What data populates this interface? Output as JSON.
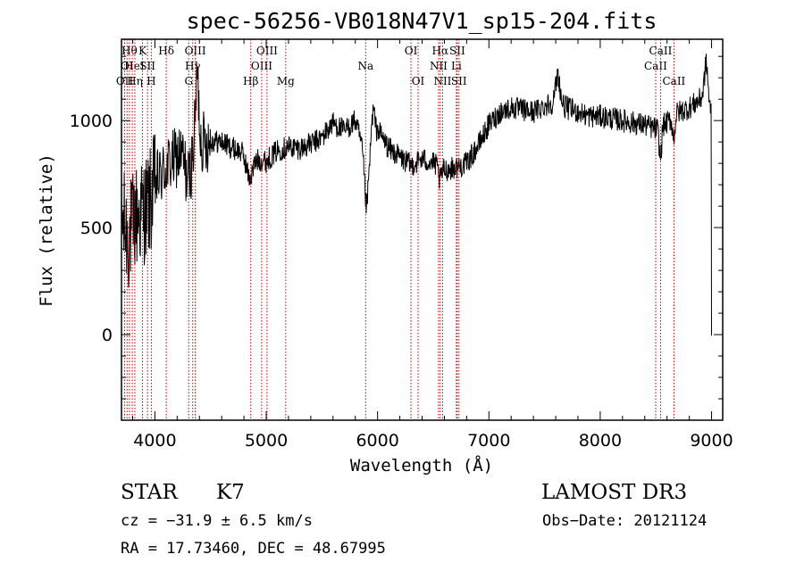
{
  "chart_data": {
    "type": "line",
    "title": "spec-56256-VB018N47V1_sp15-204.fits",
    "xlabel": "Wavelength (Å)",
    "ylabel": "Flux (relative)",
    "xlim": [
      3700,
      9100
    ],
    "ylim": [
      -400,
      1380
    ],
    "x_ticks": [
      4000,
      5000,
      6000,
      7000,
      8000,
      9000
    ],
    "y_ticks": [
      0,
      500,
      1000
    ],
    "x_minor_step": 200,
    "y_minor_step": 100,
    "line_color": "#000000",
    "marker_color": "#c00000",
    "continuum": [
      {
        "x": 3700,
        "y": 550
      },
      {
        "x": 3760,
        "y": 450
      },
      {
        "x": 3830,
        "y": 550
      },
      {
        "x": 3900,
        "y": 580
      },
      {
        "x": 3960,
        "y": 620
      },
      {
        "x": 4000,
        "y": 700
      },
      {
        "x": 4100,
        "y": 780
      },
      {
        "x": 4200,
        "y": 830
      },
      {
        "x": 4300,
        "y": 880
      },
      {
        "x": 4400,
        "y": 900
      },
      {
        "x": 4500,
        "y": 905
      },
      {
        "x": 4600,
        "y": 900
      },
      {
        "x": 4700,
        "y": 870
      },
      {
        "x": 4800,
        "y": 850
      },
      {
        "x": 4900,
        "y": 820
      },
      {
        "x": 5000,
        "y": 810
      },
      {
        "x": 5100,
        "y": 860
      },
      {
        "x": 5200,
        "y": 880
      },
      {
        "x": 5300,
        "y": 870
      },
      {
        "x": 5400,
        "y": 890
      },
      {
        "x": 5500,
        "y": 920
      },
      {
        "x": 5600,
        "y": 990
      },
      {
        "x": 5700,
        "y": 950
      },
      {
        "x": 5800,
        "y": 1000
      },
      {
        "x": 5900,
        "y": 800
      },
      {
        "x": 6000,
        "y": 960
      },
      {
        "x": 6100,
        "y": 870
      },
      {
        "x": 6200,
        "y": 830
      },
      {
        "x": 6300,
        "y": 790
      },
      {
        "x": 6400,
        "y": 820
      },
      {
        "x": 6500,
        "y": 800
      },
      {
        "x": 6600,
        "y": 770
      },
      {
        "x": 6700,
        "y": 780
      },
      {
        "x": 6800,
        "y": 800
      },
      {
        "x": 6900,
        "y": 880
      },
      {
        "x": 7000,
        "y": 980
      },
      {
        "x": 7100,
        "y": 1040
      },
      {
        "x": 7200,
        "y": 1060
      },
      {
        "x": 7300,
        "y": 1050
      },
      {
        "x": 7400,
        "y": 1040
      },
      {
        "x": 7500,
        "y": 1070
      },
      {
        "x": 7600,
        "y": 1090
      },
      {
        "x": 7700,
        "y": 1060
      },
      {
        "x": 7800,
        "y": 1040
      },
      {
        "x": 7900,
        "y": 1020
      },
      {
        "x": 8000,
        "y": 1020
      },
      {
        "x": 8100,
        "y": 1010
      },
      {
        "x": 8200,
        "y": 1000
      },
      {
        "x": 8300,
        "y": 990
      },
      {
        "x": 8400,
        "y": 980
      },
      {
        "x": 8500,
        "y": 960
      },
      {
        "x": 8600,
        "y": 990
      },
      {
        "x": 8700,
        "y": 1040
      },
      {
        "x": 8800,
        "y": 1060
      },
      {
        "x": 8900,
        "y": 1100
      },
      {
        "x": 8960,
        "y": 1150
      },
      {
        "x": 9000,
        "y": 1000
      }
    ],
    "features": [
      {
        "x": 4300,
        "depth": -150,
        "width": 40
      },
      {
        "x": 4380,
        "depth": 300,
        "width": 20
      },
      {
        "x": 4850,
        "depth": -100,
        "width": 40
      },
      {
        "x": 5900,
        "depth": -200,
        "width": 25
      },
      {
        "x": 5960,
        "depth": 150,
        "width": 20
      },
      {
        "x": 6560,
        "depth": -60,
        "width": 20
      },
      {
        "x": 7620,
        "depth": 130,
        "width": 25
      },
      {
        "x": 8540,
        "depth": -150,
        "width": 15
      },
      {
        "x": 8660,
        "depth": -100,
        "width": 15
      },
      {
        "x": 8950,
        "depth": 120,
        "width": 20
      }
    ],
    "tail": [
      {
        "x": 8996,
        "y": 1080
      },
      {
        "x": 8998,
        "y": 600
      },
      {
        "x": 8999,
        "y": 250
      },
      {
        "x": 9000,
        "y": -5
      }
    ],
    "line_markers": [
      {
        "x": 3728,
        "labels": [
          {
            "t": "OII",
            "row": 2
          }
        ]
      },
      {
        "x": 3750,
        "labels": [
          {
            "t": "OI",
            "row": 1
          }
        ]
      },
      {
        "x": 3771,
        "labels": [
          {
            "t": "Hθ",
            "row": 0
          }
        ]
      },
      {
        "x": 3797,
        "labels": [
          {
            "t": "He",
            "row": 1
          }
        ]
      },
      {
        "x": 3820,
        "labels": [
          {
            "t": "Hη",
            "row": 2
          }
        ]
      },
      {
        "x": 3889,
        "labels": [
          {
            "t": "K",
            "row": 0
          },
          {
            "t": "I",
            "row": 1
          }
        ]
      },
      {
        "x": 3934,
        "labels": [
          {
            "t": "SII",
            "row": 1
          }
        ]
      },
      {
        "x": 3968,
        "labels": [
          {
            "t": "H",
            "row": 2
          }
        ]
      },
      {
        "x": 4102,
        "labels": [
          {
            "t": "Hδ",
            "row": 0
          }
        ]
      },
      {
        "x": 4304,
        "labels": [
          {
            "t": "G",
            "row": 2
          }
        ]
      },
      {
        "x": 4340,
        "labels": [
          {
            "t": "Hγ",
            "row": 1
          }
        ]
      },
      {
        "x": 4363,
        "labels": [
          {
            "t": "OIII",
            "row": 0
          }
        ]
      },
      {
        "x": 4861,
        "labels": [
          {
            "t": "Hβ",
            "row": 2
          }
        ]
      },
      {
        "x": 4959,
        "labels": [
          {
            "t": "OIII",
            "row": 1
          }
        ]
      },
      {
        "x": 5007,
        "labels": [
          {
            "t": "OIII",
            "row": 0
          }
        ]
      },
      {
        "x": 5175,
        "labels": [
          {
            "t": "Mg",
            "row": 2
          }
        ]
      },
      {
        "x": 5893,
        "labels": [
          {
            "t": "Na",
            "row": 1
          }
        ]
      },
      {
        "x": 6300,
        "labels": [
          {
            "t": "OI",
            "row": 0
          }
        ]
      },
      {
        "x": 6364,
        "labels": [
          {
            "t": "OI",
            "row": 2
          }
        ]
      },
      {
        "x": 6548,
        "labels": [
          {
            "t": "NII",
            "row": 1
          }
        ]
      },
      {
        "x": 6563,
        "labels": [
          {
            "t": "Hα",
            "row": 0
          }
        ]
      },
      {
        "x": 6584,
        "labels": [
          {
            "t": "NII",
            "row": 2
          }
        ]
      },
      {
        "x": 6708,
        "labels": [
          {
            "t": "Li",
            "row": 1
          }
        ]
      },
      {
        "x": 6716,
        "labels": [
          {
            "t": "SII",
            "row": 0
          }
        ]
      },
      {
        "x": 6731,
        "labels": [
          {
            "t": "SII",
            "row": 2
          }
        ]
      },
      {
        "x": 8498,
        "labels": [
          {
            "t": "CaII",
            "row": 1
          }
        ]
      },
      {
        "x": 8542,
        "labels": [
          {
            "t": "CaII",
            "row": 0
          }
        ]
      },
      {
        "x": 8662,
        "labels": [
          {
            "t": "CaII",
            "row": 2
          }
        ]
      }
    ]
  },
  "info": {
    "object_class": "STAR",
    "subclass": "K7",
    "survey": "LAMOST DR3",
    "cz": "cz = −31.9 ± 6.5 km/s",
    "obs_date": "Obs−Date: 20121124",
    "coords": "RA =  17.73460, DEC =  48.67995"
  }
}
